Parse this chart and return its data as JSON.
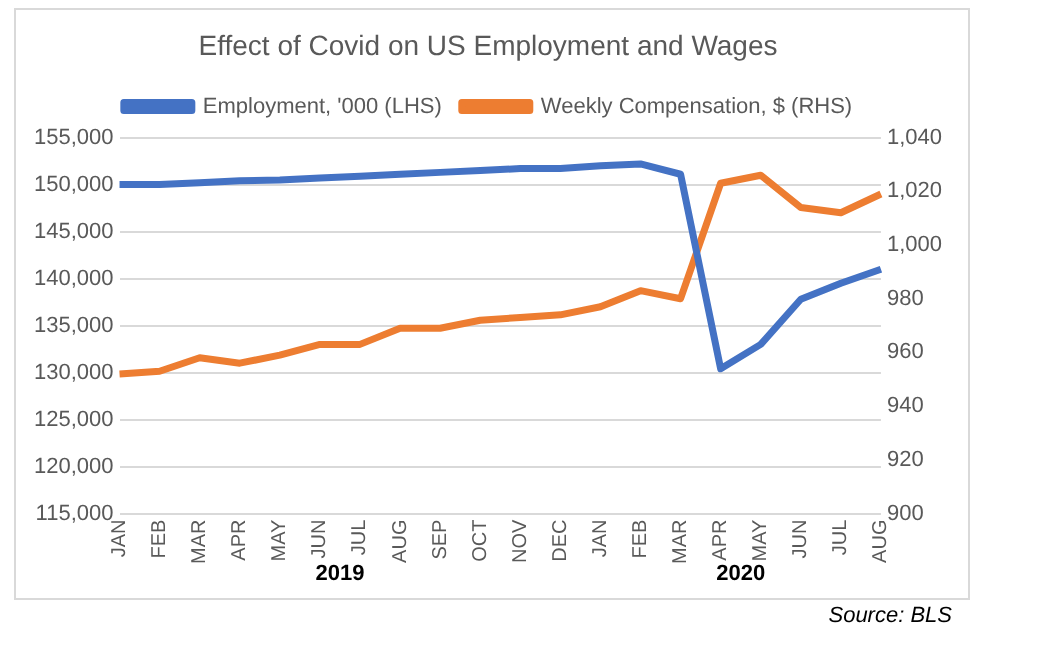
{
  "chart_data": {
    "type": "line",
    "title": "Effect of Covid on US Employment and Wages",
    "categories": [
      "JAN",
      "FEB",
      "MAR",
      "APR",
      "MAY",
      "JUN",
      "JUL",
      "AUG",
      "SEP",
      "OCT",
      "NOV",
      "DEC",
      "JAN",
      "FEB",
      "MAR",
      "APR",
      "MAY",
      "JUN",
      "JUL",
      "AUG"
    ],
    "series": [
      {
        "name": "Employment, '000 (LHS)",
        "color": "#4472c4",
        "values": [
          150000,
          150000,
          150200,
          150400,
          150500,
          150700,
          150900,
          151100,
          151300,
          151500,
          151700,
          151700,
          152000,
          152200,
          151100,
          130400,
          133000,
          137800,
          139500,
          141000
        ]
      },
      {
        "name": "Weekly Compensation, $ (RHS)",
        "color": "#ed7d31",
        "axis": "y2",
        "values": [
          952,
          953,
          958,
          956,
          959,
          963,
          963,
          969,
          969,
          972,
          973,
          974,
          977,
          983,
          980,
          1023,
          1026,
          1014,
          1012,
          1019
        ]
      }
    ],
    "ylim": [
      115000,
      155000
    ],
    "yticks": [
      {
        "value": 115000,
        "label": "115,000"
      },
      {
        "value": 120000,
        "label": "120,000"
      },
      {
        "value": 125000,
        "label": "125,000"
      },
      {
        "value": 130000,
        "label": "130,000"
      },
      {
        "value": 135000,
        "label": "135,000"
      },
      {
        "value": 140000,
        "label": "140,000"
      },
      {
        "value": 145000,
        "label": "145,000"
      },
      {
        "value": 150000,
        "label": "150,000"
      },
      {
        "value": 155000,
        "label": "155,000"
      }
    ],
    "y2lim": [
      900,
      1040
    ],
    "y2ticks": [
      900,
      920,
      940,
      960,
      980,
      {
        "value": 1000,
        "label": "1,000"
      },
      {
        "value": 1020,
        "label": "1,020"
      },
      {
        "value": 1040,
        "label": "1,040"
      }
    ],
    "annotations": [
      "2019",
      "2020",
      "Source: BLS"
    ],
    "grid": "y",
    "legend": "top",
    "marker": "none",
    "line_style": "solid"
  }
}
